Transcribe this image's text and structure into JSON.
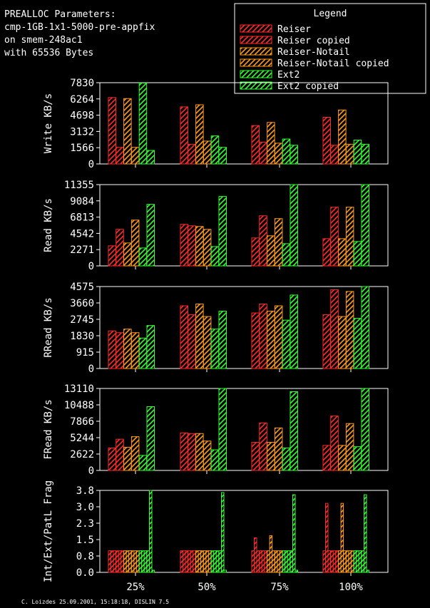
{
  "header": {
    "lines": [
      "PREALLOC Parameters:",
      "cmp-1GB-1x1-5000-pre-appfix",
      "on smem-248ac1",
      "with 65536 Bytes"
    ]
  },
  "legend": {
    "title": "Legend",
    "entries": [
      {
        "label": "Reiser",
        "color": "#ff2a2a"
      },
      {
        "label": "Reiser copied",
        "color": "#ff2a2a"
      },
      {
        "label": "Reiser-Notail",
        "color": "#ff9a1a"
      },
      {
        "label": "Reiser-Notail copied",
        "color": "#ff9a1a"
      },
      {
        "label": "Ext2",
        "color": "#33ff33"
      },
      {
        "label": "Ext2 copied",
        "color": "#33ff33"
      }
    ]
  },
  "footer": "C. Loizdes 25.09.2001, 15:18:18, DISLIN 7.5",
  "chart_data": [
    {
      "type": "bar",
      "ylabel": "Write KB/s",
      "yticks": [
        "0",
        "1566",
        "3132",
        "4698",
        "6264",
        "7830"
      ],
      "ylim": [
        0,
        7830
      ],
      "categories": [
        "25%",
        "50%",
        "75%",
        "100%"
      ],
      "series": [
        {
          "name": "Reiser",
          "values": [
            6400,
            5500,
            3700,
            4500
          ]
        },
        {
          "name": "Reiser copied",
          "values": [
            1600,
            1900,
            2100,
            1800
          ]
        },
        {
          "name": "Reiser-Notail",
          "values": [
            6300,
            5700,
            4000,
            5200
          ]
        },
        {
          "name": "Reiser-Notail copied",
          "values": [
            1600,
            2200,
            2000,
            1900
          ]
        },
        {
          "name": "Ext2",
          "values": [
            7800,
            2700,
            2400,
            2300
          ]
        },
        {
          "name": "Ext2 copied",
          "values": [
            1300,
            1600,
            1800,
            1900
          ]
        }
      ]
    },
    {
      "type": "bar",
      "ylabel": "Read KB/s",
      "yticks": [
        "0",
        "2271",
        "4542",
        "6813",
        "9084",
        "11355"
      ],
      "ylim": [
        0,
        11355
      ],
      "categories": [
        "25%",
        "50%",
        "75%",
        "100%"
      ],
      "series": [
        {
          "name": "Reiser",
          "values": [
            2800,
            5800,
            3900,
            3800
          ]
        },
        {
          "name": "Reiser copied",
          "values": [
            5100,
            5600,
            7000,
            8200
          ]
        },
        {
          "name": "Reiser-Notail",
          "values": [
            3200,
            5500,
            4200,
            3800
          ]
        },
        {
          "name": "Reiser-Notail copied",
          "values": [
            6400,
            5100,
            6600,
            8200
          ]
        },
        {
          "name": "Ext2",
          "values": [
            2500,
            2700,
            3100,
            3400
          ]
        },
        {
          "name": "Ext2 copied",
          "values": [
            8600,
            9700,
            11400,
            11400
          ]
        }
      ]
    },
    {
      "type": "bar",
      "ylabel": "RRead KB/s",
      "yticks": [
        "0",
        "915",
        "1830",
        "2745",
        "3660",
        "4575"
      ],
      "ylim": [
        0,
        4575
      ],
      "categories": [
        "25%",
        "50%",
        "75%",
        "100%"
      ],
      "series": [
        {
          "name": "Reiser",
          "values": [
            2100,
            3500,
            3100,
            3000
          ]
        },
        {
          "name": "Reiser copied",
          "values": [
            2000,
            3000,
            3600,
            4400
          ]
        },
        {
          "name": "Reiser-Notail",
          "values": [
            2200,
            3600,
            3200,
            2900
          ]
        },
        {
          "name": "Reiser-Notail copied",
          "values": [
            2000,
            2900,
            3500,
            4300
          ]
        },
        {
          "name": "Ext2",
          "values": [
            1700,
            2200,
            2700,
            2800
          ]
        },
        {
          "name": "Ext2 copied",
          "values": [
            2400,
            3200,
            4100,
            4600
          ]
        }
      ]
    },
    {
      "type": "bar",
      "ylabel": "FRead KB/s",
      "yticks": [
        "0",
        "2622",
        "5244",
        "7866",
        "10488",
        "13110"
      ],
      "ylim": [
        0,
        13110
      ],
      "categories": [
        "25%",
        "50%",
        "75%",
        "100%"
      ],
      "series": [
        {
          "name": "Reiser",
          "values": [
            3600,
            6000,
            4500,
            4000
          ]
        },
        {
          "name": "Reiser copied",
          "values": [
            5000,
            5900,
            7600,
            8700
          ]
        },
        {
          "name": "Reiser-Notail",
          "values": [
            3700,
            5900,
            4500,
            4000
          ]
        },
        {
          "name": "Reiser-Notail copied",
          "values": [
            5400,
            4700,
            6800,
            7500
          ]
        },
        {
          "name": "Ext2",
          "values": [
            2400,
            3300,
            3600,
            3800
          ]
        },
        {
          "name": "Ext2 copied",
          "values": [
            10200,
            13300,
            12600,
            13100
          ]
        }
      ]
    },
    {
      "type": "bar",
      "ylabel": "Int/Ext/PatL Frag",
      "yticks": [
        "0.0",
        "0.8",
        "1.5",
        "2.3",
        "3.0",
        "3.8"
      ],
      "ylim": [
        0,
        3.8
      ],
      "categories": [
        "25%",
        "50%",
        "75%",
        "100%"
      ],
      "series": [
        {
          "name": "Reiser int",
          "values": [
            1.0,
            1.0,
            1.0,
            1.0
          ]
        },
        {
          "name": "Reiser ext",
          "values": [
            1.0,
            1.0,
            1.6,
            3.2
          ]
        },
        {
          "name": "Reiser patl",
          "values": [
            1.0,
            1.0,
            1.0,
            1.0
          ]
        },
        {
          "name": "Reiser copied int",
          "values": [
            1.0,
            1.0,
            1.0,
            1.0
          ]
        },
        {
          "name": "Reiser copied ext",
          "values": [
            1.0,
            1.0,
            1.0,
            1.0
          ]
        },
        {
          "name": "Reiser copied patl",
          "values": [
            1.0,
            1.0,
            1.0,
            1.0
          ]
        },
        {
          "name": "Reiser-Notail int",
          "values": [
            1.0,
            1.0,
            1.0,
            1.0
          ]
        },
        {
          "name": "Reiser-Notail ext",
          "values": [
            1.0,
            1.0,
            1.7,
            3.2
          ]
        },
        {
          "name": "Reiser-Notail patl",
          "values": [
            1.0,
            1.0,
            1.0,
            1.0
          ]
        },
        {
          "name": "Reiser-Notail copied int",
          "values": [
            1.0,
            1.0,
            1.0,
            1.0
          ]
        },
        {
          "name": "Reiser-Notail copied ext",
          "values": [
            1.0,
            1.0,
            1.0,
            1.0
          ]
        },
        {
          "name": "Reiser-Notail copied patl",
          "values": [
            1.0,
            1.0,
            1.0,
            1.0
          ]
        },
        {
          "name": "Ext2 int",
          "values": [
            1.0,
            1.0,
            1.0,
            1.0
          ]
        },
        {
          "name": "Ext2 ext",
          "values": [
            1.0,
            1.0,
            1.0,
            1.0
          ]
        },
        {
          "name": "Ext2 patl",
          "values": [
            1.0,
            1.0,
            1.0,
            1.0
          ]
        },
        {
          "name": "Ext2 copied int",
          "values": [
            1.0,
            1.0,
            1.0,
            1.0
          ]
        },
        {
          "name": "Ext2 copied ext",
          "values": [
            3.8,
            3.7,
            3.6,
            3.6
          ]
        },
        {
          "name": "Ext2 copied patl",
          "values": [
            0.1,
            0.1,
            0.1,
            0.1
          ]
        }
      ]
    }
  ]
}
